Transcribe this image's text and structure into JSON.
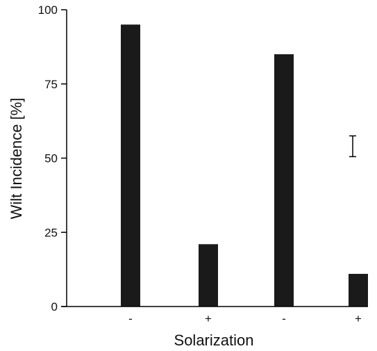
{
  "chart_data": {
    "type": "bar",
    "categories": [
      "-",
      "+",
      "-",
      "+"
    ],
    "values": [
      95,
      21,
      85,
      11
    ],
    "xlabel": "Solarization",
    "ylabel": "Wilt Incidence [%]",
    "ylim": [
      0,
      100
    ],
    "yticks": [
      0,
      25,
      50,
      75,
      100
    ],
    "grid": false,
    "error_bar": {
      "low": 50.5,
      "high": 57.5
    },
    "colors": {
      "bar": "#1a1a1a",
      "axis": "#000000"
    }
  }
}
